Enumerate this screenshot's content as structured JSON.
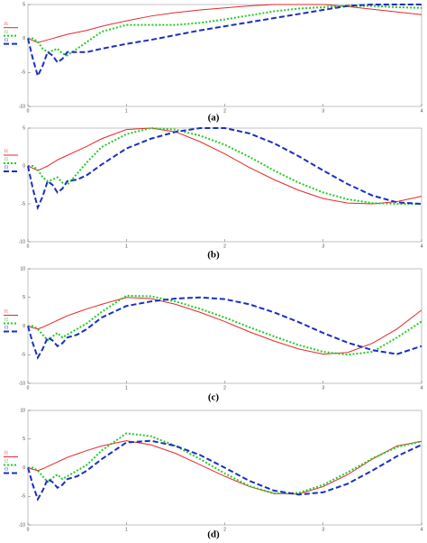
{
  "chart_data": [
    {
      "type": "line",
      "caption": "(a)",
      "x": [
        0,
        0.05,
        0.1,
        0.15,
        0.2,
        0.25,
        0.3,
        0.35,
        0.4,
        0.5,
        0.6,
        0.75,
        1,
        1.25,
        1.5,
        1.75,
        2,
        2.25,
        2.5,
        2.75,
        3,
        3.25,
        3.5,
        3.75,
        4
      ],
      "xlim": [
        0,
        4
      ],
      "xticks": [
        0,
        1,
        2,
        3,
        4
      ],
      "ylim": [
        -10,
        5
      ],
      "yticks": [
        -10,
        -5,
        0,
        5
      ],
      "series": [
        {
          "name": "f1",
          "color": "#e8262b",
          "dash": "solid",
          "values": [
            0,
            -0.3,
            -0.6,
            -0.4,
            -0.2,
            0,
            0.2,
            0.4,
            0.6,
            0.9,
            1.2,
            1.8,
            2.6,
            3.3,
            3.8,
            4.2,
            4.5,
            4.8,
            5,
            5,
            5,
            4.7,
            4.3,
            3.9,
            3.5
          ]
        },
        {
          "name": "f2",
          "color": "#22cc22",
          "dash": "dotted",
          "values": [
            0,
            0,
            -0.5,
            -1.5,
            -2,
            -1.8,
            -1.5,
            -2.2,
            -2.5,
            -1.5,
            -0.5,
            1,
            2,
            2,
            2,
            2.3,
            2.8,
            3.4,
            4,
            4.4,
            4.6,
            4.8,
            4.8,
            4.6,
            4.5
          ]
        },
        {
          "name": "f3",
          "color": "#1a2fbf",
          "dash": "dashed",
          "values": [
            0,
            -3,
            -5.5,
            -4,
            -2,
            -2.5,
            -3.5,
            -3,
            -2,
            -2,
            -2,
            -1.5,
            -0.8,
            -0.2,
            0.5,
            1.2,
            1.8,
            2.4,
            3,
            3.6,
            4.2,
            4.8,
            5,
            5,
            5
          ]
        }
      ]
    },
    {
      "type": "line",
      "caption": "(b)",
      "x": [
        0,
        0.05,
        0.1,
        0.15,
        0.2,
        0.25,
        0.3,
        0.35,
        0.4,
        0.5,
        0.6,
        0.75,
        1,
        1.25,
        1.5,
        1.75,
        2,
        2.25,
        2.5,
        2.75,
        3,
        3.25,
        3.5,
        3.75,
        4
      ],
      "xlim": [
        0,
        4
      ],
      "xticks": [
        0,
        1,
        2,
        3,
        4
      ],
      "ylim": [
        -10,
        5
      ],
      "yticks": [
        -10,
        -5,
        0,
        5
      ],
      "series": [
        {
          "name": "f1",
          "color": "#e8262b",
          "dash": "solid",
          "values": [
            0,
            -0.3,
            -0.6,
            -0.3,
            0,
            0.4,
            0.8,
            1.1,
            1.4,
            2,
            2.6,
            3.6,
            4.8,
            5,
            4.5,
            3.2,
            1.6,
            -0.2,
            -1.8,
            -3.2,
            -4.3,
            -4.9,
            -5,
            -4.7,
            -4
          ]
        },
        {
          "name": "f2",
          "color": "#22cc22",
          "dash": "dotted",
          "values": [
            0,
            0,
            -0.5,
            -1.5,
            -2,
            -1.8,
            -1.5,
            -2.2,
            -2.5,
            -1,
            0.5,
            2.5,
            4.2,
            5,
            4.8,
            4,
            2.8,
            1.2,
            -0.6,
            -2.2,
            -3.5,
            -4.4,
            -4.9,
            -5,
            -5
          ]
        },
        {
          "name": "f3",
          "color": "#1a2fbf",
          "dash": "dashed",
          "values": [
            0,
            -3,
            -5.5,
            -4,
            -2,
            -2.5,
            -3.5,
            -3,
            -2,
            -1.8,
            -1.2,
            0.2,
            2.3,
            3.6,
            4.5,
            5,
            5,
            4.3,
            3,
            1.3,
            -0.6,
            -2.4,
            -3.9,
            -4.8,
            -5
          ]
        }
      ]
    },
    {
      "type": "line",
      "caption": "(c)",
      "x": [
        0,
        0.05,
        0.1,
        0.15,
        0.2,
        0.25,
        0.3,
        0.35,
        0.4,
        0.5,
        0.6,
        0.75,
        1,
        1.25,
        1.5,
        1.75,
        2,
        2.25,
        2.5,
        2.75,
        3,
        3.25,
        3.5,
        3.75,
        4
      ],
      "xlim": [
        0,
        4
      ],
      "xticks": [
        0,
        1,
        2,
        3,
        4
      ],
      "ylim": [
        -10,
        10
      ],
      "yticks": [
        -10,
        -5,
        0,
        5,
        10
      ],
      "series": [
        {
          "name": "f1",
          "color": "#e8262b",
          "dash": "solid",
          "values": [
            0,
            -0.3,
            -0.5,
            -0.2,
            0.2,
            0.6,
            1,
            1.4,
            1.8,
            2.4,
            3,
            3.8,
            5,
            4.8,
            3.8,
            2.4,
            0.8,
            -1,
            -2.6,
            -4,
            -4.9,
            -4.6,
            -3,
            -0.5,
            2.8
          ]
        },
        {
          "name": "f2",
          "color": "#22cc22",
          "dash": "dotted",
          "values": [
            0,
            0,
            -0.5,
            -1.5,
            -2.5,
            -1.8,
            -1.2,
            -2,
            -1.5,
            -0.5,
            0.5,
            2.5,
            5.3,
            5.2,
            4.3,
            3,
            1.5,
            -0.2,
            -1.8,
            -3.3,
            -4.5,
            -5,
            -4.5,
            -2,
            0.8
          ]
        },
        {
          "name": "f3",
          "color": "#1a2fbf",
          "dash": "dashed",
          "values": [
            0,
            -3,
            -5.5,
            -4,
            -2,
            -2.5,
            -3.5,
            -3,
            -2,
            -1.5,
            -0.5,
            1.5,
            3.5,
            4.3,
            4.8,
            5,
            4.7,
            3.8,
            2.4,
            0.7,
            -1.2,
            -2.9,
            -4.2,
            -4.9,
            -3.5
          ]
        }
      ]
    },
    {
      "type": "line",
      "caption": "(d)",
      "x": [
        0,
        0.05,
        0.1,
        0.15,
        0.2,
        0.25,
        0.3,
        0.35,
        0.4,
        0.5,
        0.6,
        0.75,
        1,
        1.25,
        1.5,
        1.75,
        2,
        2.25,
        2.5,
        2.75,
        3,
        3.25,
        3.5,
        3.75,
        4
      ],
      "xlim": [
        0,
        4
      ],
      "xticks": [
        0,
        1,
        2,
        3,
        4
      ],
      "ylim": [
        -10,
        10
      ],
      "yticks": [
        -10,
        -5,
        0,
        5,
        10
      ],
      "series": [
        {
          "name": "f1",
          "color": "#e8262b",
          "dash": "solid",
          "values": [
            0,
            -0.3,
            -0.5,
            -0.2,
            0.2,
            0.6,
            1,
            1.4,
            1.8,
            2.4,
            3,
            3.8,
            4.7,
            4,
            2.5,
            0.5,
            -1.5,
            -3.3,
            -4.5,
            -4.6,
            -3.3,
            -1.2,
            1.5,
            3.8,
            4.6
          ]
        },
        {
          "name": "f2",
          "color": "#22cc22",
          "dash": "dotted",
          "values": [
            0,
            0,
            -0.5,
            -1.5,
            -2.5,
            -1.8,
            -1.2,
            -2,
            -1.5,
            -0.5,
            0.5,
            3,
            6,
            5.5,
            3.8,
            1.5,
            -1,
            -3.2,
            -4.5,
            -4.4,
            -3,
            -0.8,
            1.6,
            3.6,
            4.6
          ]
        },
        {
          "name": "f3",
          "color": "#1a2fbf",
          "dash": "dashed",
          "values": [
            0,
            -3,
            -5.5,
            -4,
            -2,
            -2.5,
            -3.5,
            -3,
            -2,
            -1.5,
            -0.5,
            1.5,
            4.4,
            4.7,
            3.8,
            2.2,
            0,
            -2.3,
            -4,
            -4.7,
            -4.3,
            -2.8,
            -0.5,
            2,
            4
          ]
        }
      ]
    }
  ]
}
